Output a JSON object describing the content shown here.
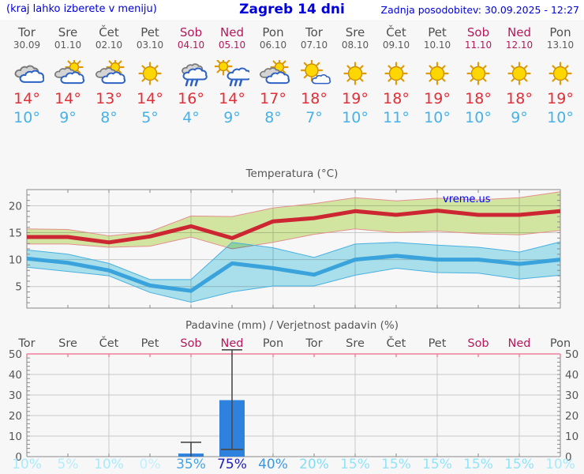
{
  "header": {
    "left_note": "(kraj lahko izberete v meniju)",
    "title": "Zagreb 14 dni",
    "updated": "Zadnja posodobitev: 30.09.2025 - 12:27"
  },
  "watermark": "vreme.us",
  "days": [
    {
      "name": "Tor",
      "date": "30.09",
      "weekend": false,
      "icon": "cloudy",
      "tmax": "14°",
      "tmin": "10°",
      "prob": "10%",
      "prob_color": "#a8eafb"
    },
    {
      "name": "Sre",
      "date": "01.10",
      "weekend": false,
      "icon": "partly-cloudy",
      "tmax": "14°",
      "tmin": "9°",
      "prob": "5%",
      "prob_color": "#b4edfc"
    },
    {
      "name": "Čet",
      "date": "02.10",
      "weekend": false,
      "icon": "partly-cloudy",
      "tmax": "13°",
      "tmin": "8°",
      "prob": "10%",
      "prob_color": "#a8eafb"
    },
    {
      "name": "Pet",
      "date": "03.10",
      "weekend": false,
      "icon": "sunny",
      "tmax": "14°",
      "tmin": "5°",
      "prob": "0%",
      "prob_color": "#bff0fd"
    },
    {
      "name": "Sob",
      "date": "04.10",
      "weekend": true,
      "icon": "rain",
      "tmax": "16°",
      "tmin": "4°",
      "prob": "35%",
      "prob_color": "#44a3e6"
    },
    {
      "name": "Ned",
      "date": "05.10",
      "weekend": true,
      "icon": "sun-rain",
      "tmax": "14°",
      "tmin": "9°",
      "prob": "75%",
      "prob_color": "#2121b8"
    },
    {
      "name": "Pon",
      "date": "06.10",
      "weekend": false,
      "icon": "partly-cloudy",
      "tmax": "17°",
      "tmin": "8°",
      "prob": "40%",
      "prob_color": "#3f97e0"
    },
    {
      "name": "Tor",
      "date": "07.10",
      "weekend": false,
      "icon": "mostly-sunny",
      "tmax": "18°",
      "tmin": "7°",
      "prob": "20%",
      "prob_color": "#83ddf7"
    },
    {
      "name": "Sre",
      "date": "08.10",
      "weekend": false,
      "icon": "sunny",
      "tmax": "19°",
      "tmin": "10°",
      "prob": "15%",
      "prob_color": "#93e3f9"
    },
    {
      "name": "Čet",
      "date": "09.10",
      "weekend": false,
      "icon": "sunny",
      "tmax": "18°",
      "tmin": "11°",
      "prob": "15%",
      "prob_color": "#93e3f9"
    },
    {
      "name": "Pet",
      "date": "10.10",
      "weekend": false,
      "icon": "sunny",
      "tmax": "19°",
      "tmin": "10°",
      "prob": "15%",
      "prob_color": "#93e3f9"
    },
    {
      "name": "Sob",
      "date": "11.10",
      "weekend": true,
      "icon": "sunny",
      "tmax": "18°",
      "tmin": "10°",
      "prob": "15%",
      "prob_color": "#93e3f9"
    },
    {
      "name": "Ned",
      "date": "12.10",
      "weekend": true,
      "icon": "sunny",
      "tmax": "18°",
      "tmin": "9°",
      "prob": "15%",
      "prob_color": "#93e3f9"
    },
    {
      "name": "Pon",
      "date": "13.10",
      "weekend": false,
      "icon": "sunny",
      "tmax": "19°",
      "tmin": "10°",
      "prob": "10%",
      "prob_color": "#a8eafb"
    }
  ],
  "chart_data": [
    {
      "type": "line",
      "title": "Temperatura (°C)",
      "categories": [
        "Tor 30.09",
        "Sre 01.10",
        "Čet 02.10",
        "Pet 03.10",
        "Sob 04.10",
        "Ned 05.10",
        "Pon 06.10",
        "Tor 07.10",
        "Sre 08.10",
        "Čet 09.10",
        "Pet 10.10",
        "Sob 11.10",
        "Ned 12.10",
        "Pon 13.10"
      ],
      "ylim": [
        1,
        23
      ],
      "yticks": [
        5,
        10,
        15,
        20
      ],
      "grid": true,
      "series": [
        {
          "name": "tmax",
          "values": [
            14.2,
            14.2,
            13.2,
            14.3,
            16.2,
            14.0,
            17.1,
            17.7,
            19.0,
            18.3,
            19.1,
            18.3,
            18.3,
            19.0
          ]
        },
        {
          "name": "tmax_band_upper",
          "values": [
            15.7,
            15.6,
            14.4,
            15.2,
            18.1,
            18.0,
            19.6,
            20.4,
            21.5,
            20.9,
            21.4,
            21.1,
            21.5,
            22.6
          ]
        },
        {
          "name": "tmax_band_lower",
          "values": [
            12.9,
            12.9,
            12.3,
            12.5,
            14.2,
            12.0,
            13.2,
            14.7,
            15.7,
            15.0,
            15.3,
            14.8,
            14.6,
            15.4
          ]
        },
        {
          "name": "tmin",
          "values": [
            10.2,
            9.4,
            8.0,
            5.2,
            4.2,
            9.3,
            8.4,
            7.2,
            10.0,
            10.7,
            10.0,
            10.0,
            9.2,
            10.0
          ]
        },
        {
          "name": "tmin_band_upper",
          "values": [
            11.8,
            11.0,
            9.3,
            6.3,
            6.3,
            13.2,
            12.2,
            10.4,
            12.9,
            13.2,
            12.7,
            12.3,
            11.4,
            13.3
          ]
        },
        {
          "name": "tmin_band_lower",
          "values": [
            8.6,
            7.8,
            7.0,
            3.9,
            2.1,
            4.0,
            5.1,
            5.1,
            7.1,
            8.4,
            7.6,
            7.5,
            6.4,
            7.1
          ]
        }
      ]
    },
    {
      "type": "bar",
      "title": "Padavine (mm) / Verjetnost padavin (%)",
      "categories": [
        "Tor",
        "Sre",
        "Čet",
        "Pet",
        "Sob",
        "Ned",
        "Pon",
        "Tor",
        "Sre",
        "Čet",
        "Pet",
        "Sob",
        "Ned",
        "Pon"
      ],
      "values_mm": [
        0,
        0,
        0,
        0,
        1.5,
        27.5,
        0,
        0,
        0,
        0,
        0,
        0,
        0,
        0
      ],
      "whiskers": [
        {
          "index": 4,
          "low": 0,
          "high": 7,
          "low_cap": false
        },
        {
          "index": 5,
          "low": 3.5,
          "high": 52,
          "low_cap": true
        }
      ],
      "probabilities": [
        "10%",
        "5%",
        "10%",
        "0%",
        "35%",
        "75%",
        "40%",
        "20%",
        "15%",
        "15%",
        "15%",
        "15%",
        "15%",
        "10%"
      ],
      "ylim": [
        0,
        50
      ],
      "yticks": [
        0,
        10,
        20,
        30,
        40,
        50
      ],
      "grid": true
    }
  ],
  "colors": {
    "bg": "#f7f7f7",
    "header_bg": "#ffffff",
    "accent_blue": "#0000dd",
    "watermark_blue": "#0000ff",
    "weekday_gray": "#4f4f4f",
    "weekend_red": "#b5195b",
    "temp_high_red": "#e02f38",
    "temp_low_blue": "#47b2e8",
    "chart_text": "#555555",
    "grid": "#c9c9c9",
    "frame": "#8a8a8a",
    "precip_top_frame": "#ef7f9b",
    "bar_blue": "#2e82dd",
    "whisker_gray": "#4a4a4a",
    "tmax_line": "#cc2633",
    "tmax_band": "#d9eda5",
    "tmax_band_edge": "#e48f8f",
    "tmin_line": "#3aa3dc",
    "tmin_band": "#aee7f2",
    "tmin_band_edge": "#4ab0e0"
  }
}
